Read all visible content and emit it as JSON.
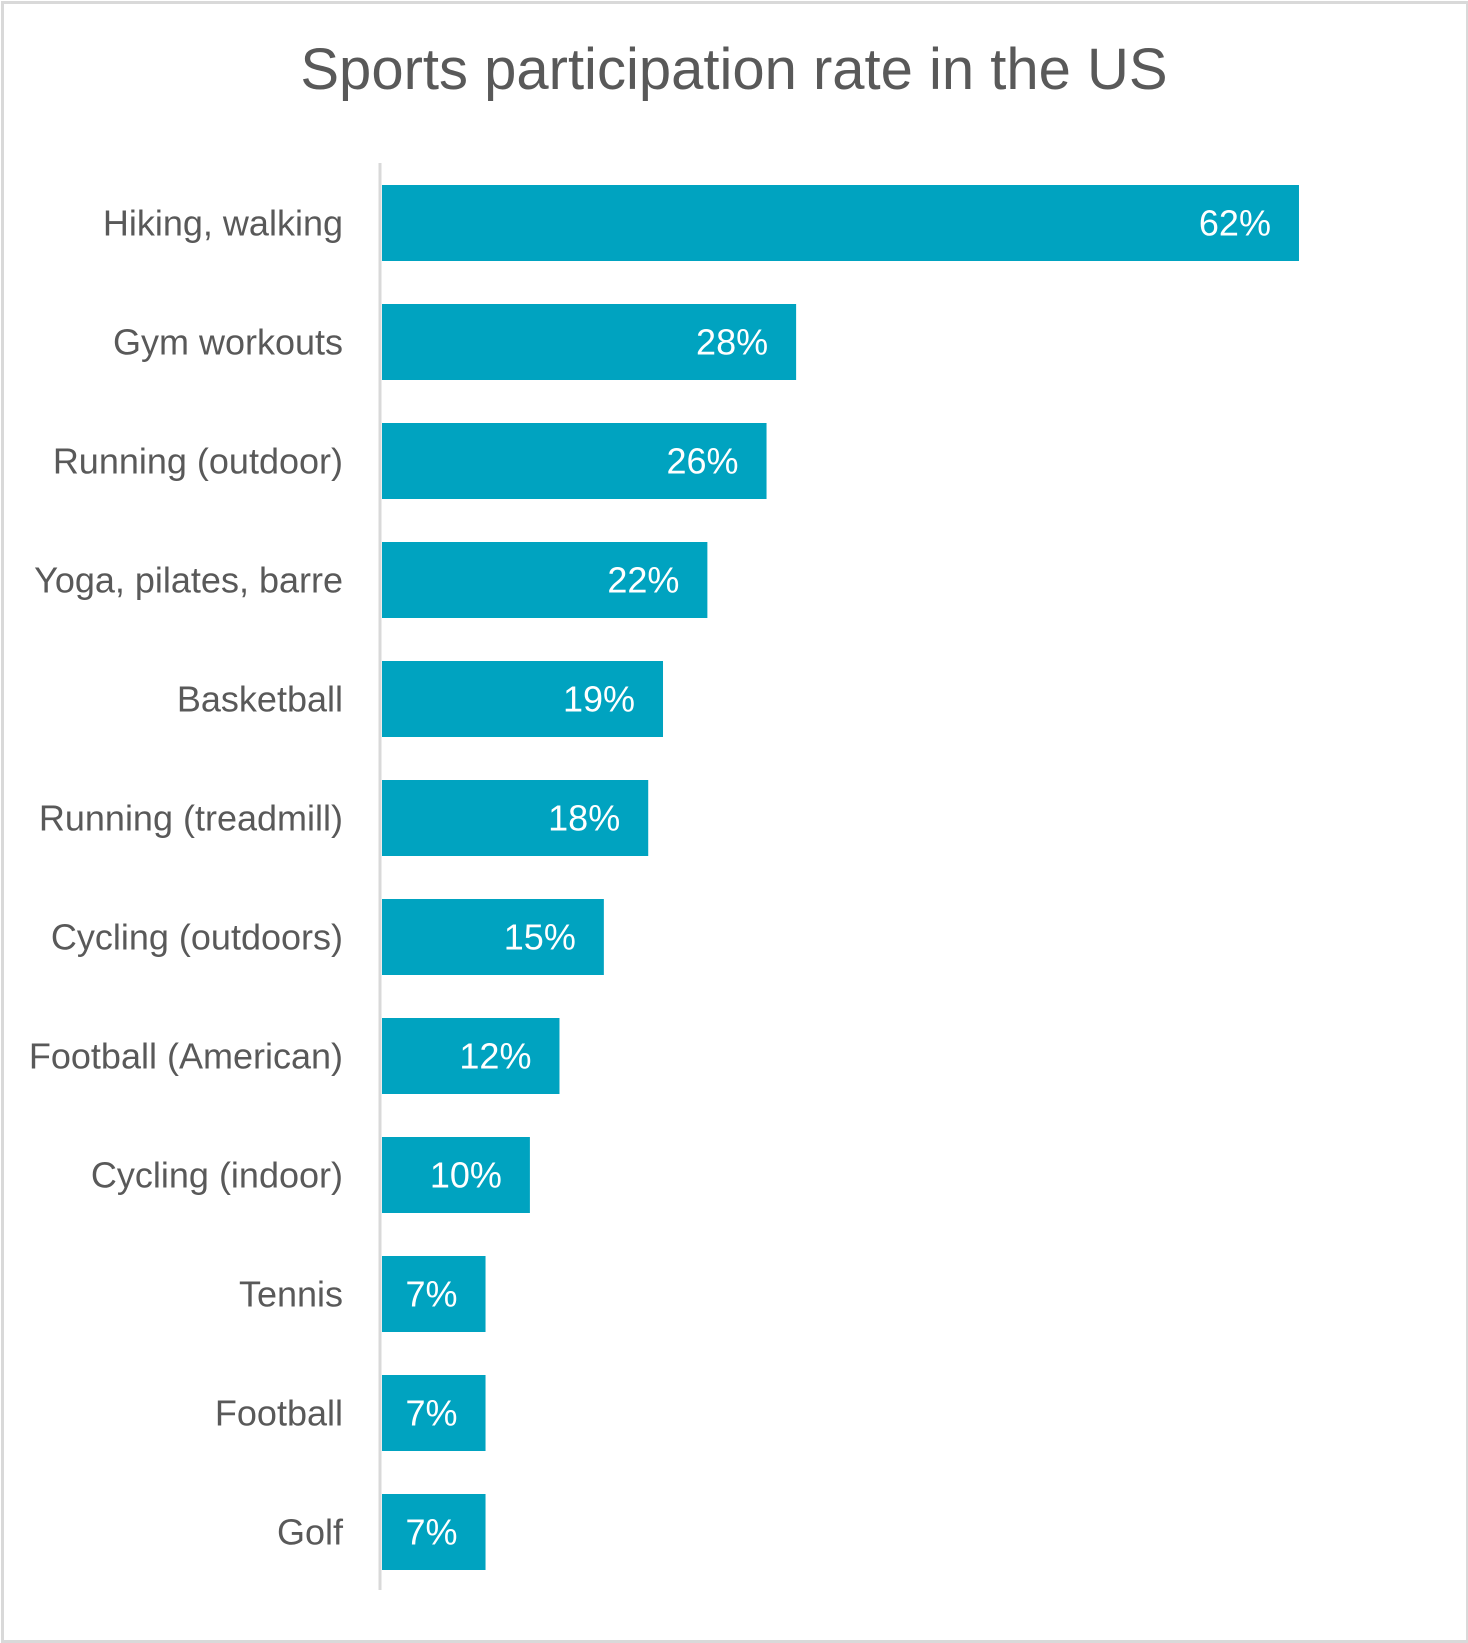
{
  "chart_data": {
    "type": "bar",
    "orientation": "horizontal",
    "title": "Sports participation rate in the US",
    "categories": [
      "Hiking, walking",
      "Gym workouts",
      "Running (outdoor)",
      "Yoga, pilates, barre",
      "Basketball",
      "Running (treadmill)",
      "Cycling (outdoors)",
      "Football (American)",
      "Cycling (indoor)",
      "Tennis",
      "Football",
      "Golf"
    ],
    "values": [
      62,
      28,
      26,
      22,
      19,
      18,
      15,
      12,
      10,
      7,
      7,
      7
    ],
    "data_labels": [
      "62%",
      "28%",
      "26%",
      "22%",
      "19%",
      "18%",
      "15%",
      "12%",
      "10%",
      "7%",
      "7%",
      "7%"
    ],
    "unit": "%",
    "xlim": [
      0,
      100
    ],
    "grid": false,
    "legend": "none",
    "colors": {
      "bar": "#00a3c0",
      "bar_label": "#ffffff",
      "category_label": "#595959",
      "title": "#595959",
      "axis": "#d9d9d9",
      "border": "#d9d9d9"
    }
  }
}
